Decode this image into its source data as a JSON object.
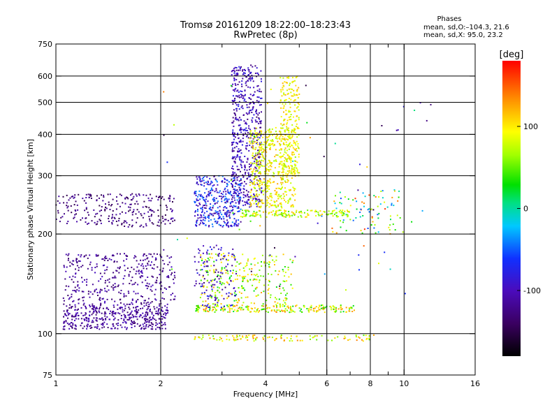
{
  "title": {
    "line1": "Tromsø 20161209 18:22:00–18:23:43",
    "line2": "RwPretec (8p)"
  },
  "phases_box": {
    "heading": "Phases",
    "line_o": "mean, sd,O:–104.3, 21.6",
    "line_x": "mean, sd,X:  95.0, 23.2"
  },
  "chart_data": {
    "type": "scatter",
    "xlabel": "Frequency [MHz]",
    "ylabel": "Stationary phase Virtual Height [km]",
    "xscale": "log",
    "yscale": "log",
    "xlim": [
      1,
      16
    ],
    "ylim": [
      75,
      750
    ],
    "xticks": [
      {
        "v": 1,
        "label": "1"
      },
      {
        "v": 2,
        "label": "2"
      },
      {
        "v": 4,
        "label": "4"
      },
      {
        "v": 6,
        "label": "6"
      },
      {
        "v": 8,
        "label": "8"
      },
      {
        "v": 10,
        "label": "10"
      },
      {
        "v": 16,
        "label": "16"
      }
    ],
    "xminor": [
      3,
      5,
      7,
      9
    ],
    "xgrid": [
      2,
      4,
      6,
      8,
      10
    ],
    "yticks": [
      {
        "v": 75,
        "label": "75"
      },
      {
        "v": 100,
        "label": "100"
      },
      {
        "v": 200,
        "label": "200"
      },
      {
        "v": 300,
        "label": "300"
      },
      {
        "v": 400,
        "label": "400"
      },
      {
        "v": 500,
        "label": "500"
      },
      {
        "v": 600,
        "label": "600"
      },
      {
        "v": 750,
        "label": "750"
      }
    ],
    "ygrid": [
      100,
      200,
      300,
      400,
      500,
      600
    ],
    "colorbar": {
      "label": "[deg]",
      "range": [
        -180,
        180
      ],
      "ticks": [
        {
          "v": 100,
          "label": "100"
        },
        {
          "v": 0,
          "label": "0"
        },
        {
          "v": -100,
          "label": "-100"
        }
      ]
    },
    "clusters": [
      {
        "x": [
          1.05,
          2.1
        ],
        "y": [
          103,
          122
        ],
        "phase": [
          -135,
          -95
        ],
        "n": 420
      },
      {
        "x": [
          1.05,
          2.2
        ],
        "y": [
          122,
          175
        ],
        "phase": [
          -140,
          -95
        ],
        "n": 380
      },
      {
        "x": [
          1.0,
          2.2
        ],
        "y": [
          210,
          265
        ],
        "phase": [
          -150,
          -105
        ],
        "n": 260
      },
      {
        "x": [
          2.5,
          3.4
        ],
        "y": [
          210,
          300
        ],
        "phase": [
          -120,
          -35
        ],
        "n": 380
      },
      {
        "x": [
          3.2,
          3.9
        ],
        "y": [
          240,
          650
        ],
        "phase": [
          -130,
          -75
        ],
        "n": 560
      },
      {
        "x": [
          3.6,
          4.9
        ],
        "y": [
          240,
          420
        ],
        "phase": [
          60,
          125
        ],
        "n": 520
      },
      {
        "x": [
          4.4,
          5.0
        ],
        "y": [
          300,
          600
        ],
        "phase": [
          65,
          120
        ],
        "n": 220
      },
      {
        "x": [
          3.4,
          7.0
        ],
        "y": [
          225,
          236
        ],
        "phase": [
          40,
          120
        ],
        "n": 160
      },
      {
        "x": [
          2.5,
          7.2
        ],
        "y": [
          116,
          122
        ],
        "phase": [
          20,
          140
        ],
        "n": 240
      },
      {
        "x": [
          2.6,
          4.8
        ],
        "y": [
          122,
          175
        ],
        "phase": [
          20,
          130
        ],
        "n": 280
      },
      {
        "x": [
          2.5,
          3.3
        ],
        "y": [
          120,
          185
        ],
        "phase": [
          -130,
          -70
        ],
        "n": 120
      },
      {
        "x": [
          2.5,
          8.2
        ],
        "y": [
          95,
          99
        ],
        "phase": [
          45,
          140
        ],
        "n": 110
      },
      {
        "x": [
          6.2,
          9.8
        ],
        "y": [
          200,
          275
        ],
        "phase": [
          -60,
          170
        ],
        "n": 90
      },
      {
        "x": [
          2.0,
          12.5
        ],
        "y": [
          130,
          600
        ],
        "phase": [
          -160,
          160
        ],
        "n": 60
      }
    ]
  }
}
